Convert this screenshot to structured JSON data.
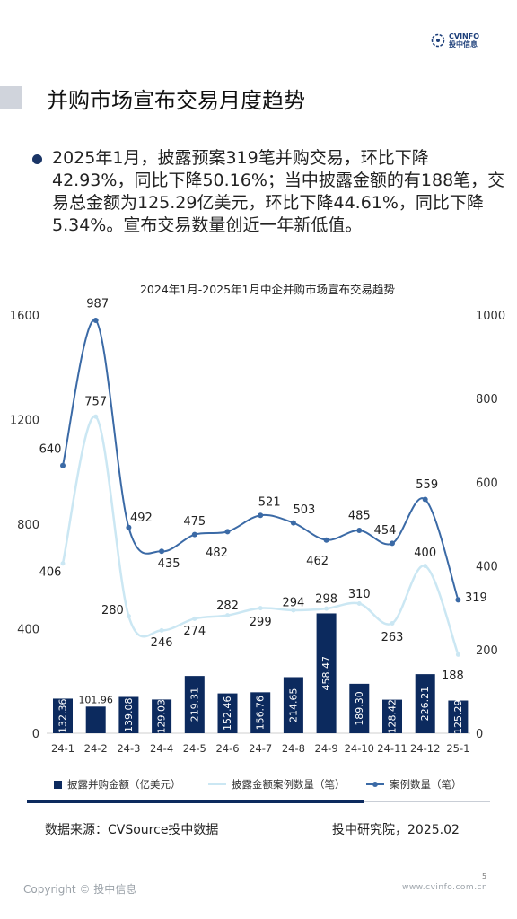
{
  "logo": {
    "line1": "CVINFO",
    "line2": "投中信息"
  },
  "page_title": "并购市场宣布交易月度趋势",
  "summary": "2025年1月，披露预案319笔并购交易，环比下降42.93%，同比下降50.16%；当中披露金额的有188笔，交易总金额为125.29亿美元，环比下降44.61%，同比下降5.34%。宣布交易数量创近一年新低值。",
  "colors": {
    "bar": "#0c2a5e",
    "disclosed_line": "#cbe7f3",
    "count_line": "#3b6aa6",
    "divider": "#0c2a5e"
  },
  "chart_data": {
    "type": "bar+line",
    "title": "2024年1月-2025年1月中企并购市场宣布交易趋势",
    "categories": [
      "24-1",
      "24-2",
      "24-3",
      "24-4",
      "24-5",
      "24-6",
      "24-7",
      "24-8",
      "24-9",
      "24-10",
      "24-11",
      "24-12",
      "25-1"
    ],
    "left_axis": {
      "ylim": [
        0,
        1600
      ],
      "ticks": [
        "0",
        "400",
        "800",
        "1200",
        "1600"
      ]
    },
    "right_axis": {
      "ylim": [
        0,
        1000
      ],
      "ticks": [
        "0",
        "200",
        "400",
        "600",
        "800",
        "1000"
      ]
    },
    "series": [
      {
        "name": "披露并购金额（亿美元）",
        "kind": "bar",
        "axis": "left",
        "values": [
          132.36,
          101.96,
          139.08,
          129.03,
          219.31,
          152.46,
          156.76,
          214.65,
          458.47,
          189.3,
          128.42,
          226.21,
          125.29
        ],
        "labels": [
          "132.36",
          "101.96",
          "139.08",
          "129.03",
          "219.31",
          "152.46",
          "156.76",
          "214.65",
          "458.47",
          "189.30",
          "128.42",
          "226.21",
          "125.29"
        ]
      },
      {
        "name": "披露金额案例数量（笔）",
        "kind": "line",
        "axis": "right",
        "values": [
          406,
          757,
          280,
          246,
          274,
          282,
          299,
          294,
          298,
          310,
          263,
          400,
          188
        ]
      },
      {
        "name": "案例数量（笔）",
        "kind": "line-marker",
        "axis": "right",
        "values": [
          640,
          987,
          492,
          435,
          475,
          482,
          521,
          503,
          462,
          485,
          454,
          559,
          319
        ]
      }
    ]
  },
  "footer": {
    "source": "数据来源：CVSource投中数据",
    "institute": "投中研究院，2025.02",
    "page": "5",
    "copyright": "Copyright © 投中信息",
    "website": "www.cvinfo.com.cn"
  }
}
